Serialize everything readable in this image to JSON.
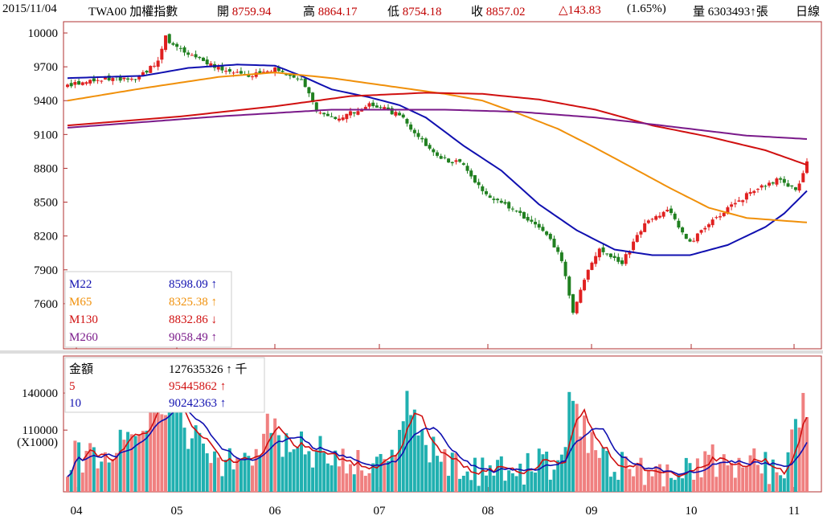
{
  "header": {
    "date": "2015/11/04",
    "symbol": "TWA00 加權指數",
    "open_label": "開",
    "open_value": "8759.94",
    "high_label": "高",
    "high_value": "8864.17",
    "low_label": "低",
    "low_value": "8754.18",
    "close_label": "收",
    "close_value": "8857.02",
    "change": "△143.83",
    "change_pct": "(1.65%)",
    "volume_label": "量",
    "volume_value": "6303493↑張",
    "period": "日線"
  },
  "colors": {
    "frame": "#b03030",
    "up": "#e02020",
    "down": "#208020",
    "m22": "#1010b0",
    "m65": "#f0900a",
    "m130": "#d01010",
    "m260": "#7a1a8a",
    "vol_up": "#f08080",
    "vol_down": "#20b0b0",
    "vol5": "#d01010",
    "vol10": "#1010b0"
  },
  "chart_data": [
    {
      "type": "candlestick",
      "ylim": [
        7200,
        10100
      ],
      "y_ticks": [
        "10000",
        "9700",
        "9400",
        "9100",
        "8800",
        "8500",
        "8200",
        "7900",
        "7600"
      ],
      "x_ticks": [
        "04",
        "05",
        "06",
        "07",
        "08",
        "09",
        "10",
        "11"
      ],
      "legend": [
        {
          "name": "M22",
          "value": "8598.09",
          "arrow": "↑"
        },
        {
          "name": "M65",
          "value": "8325.38",
          "arrow": "↑"
        },
        {
          "name": "M130",
          "value": "8832.86",
          "arrow": "↓"
        },
        {
          "name": "M260",
          "value": "9058.49",
          "arrow": "↑"
        }
      ],
      "close_anchors": [
        [
          0,
          9540
        ],
        [
          10,
          9600
        ],
        [
          18,
          9590
        ],
        [
          24,
          9740
        ],
        [
          26,
          9960
        ],
        [
          29,
          9870
        ],
        [
          33,
          9790
        ],
        [
          40,
          9690
        ],
        [
          48,
          9620
        ],
        [
          55,
          9680
        ],
        [
          62,
          9600
        ],
        [
          66,
          9320
        ],
        [
          72,
          9230
        ],
        [
          80,
          9380
        ],
        [
          88,
          9270
        ],
        [
          95,
          9000
        ],
        [
          100,
          8880
        ],
        [
          105,
          8840
        ],
        [
          110,
          8580
        ],
        [
          116,
          8480
        ],
        [
          122,
          8350
        ],
        [
          127,
          8220
        ],
        [
          131,
          7980
        ],
        [
          134,
          7520
        ],
        [
          137,
          7830
        ],
        [
          141,
          8080
        ],
        [
          147,
          7970
        ],
        [
          153,
          8300
        ],
        [
          159,
          8440
        ],
        [
          165,
          8140
        ],
        [
          171,
          8340
        ],
        [
          177,
          8490
        ],
        [
          183,
          8630
        ],
        [
          189,
          8710
        ],
        [
          193,
          8590
        ],
        [
          196,
          8860
        ]
      ],
      "ma": [
        {
          "name": "M22",
          "points": [
            [
              0,
              9600
            ],
            [
              20,
              9620
            ],
            [
              32,
              9690
            ],
            [
              45,
              9720
            ],
            [
              55,
              9710
            ],
            [
              62,
              9620
            ],
            [
              70,
              9500
            ],
            [
              80,
              9430
            ],
            [
              88,
              9360
            ],
            [
              95,
              9250
            ],
            [
              105,
              9000
            ],
            [
              115,
              8780
            ],
            [
              125,
              8480
            ],
            [
              135,
              8250
            ],
            [
              145,
              8080
            ],
            [
              155,
              8030
            ],
            [
              165,
              8030
            ],
            [
              175,
              8120
            ],
            [
              185,
              8280
            ],
            [
              190,
              8400
            ],
            [
              196,
              8600
            ]
          ]
        },
        {
          "name": "M65",
          "points": [
            [
              0,
              9400
            ],
            [
              20,
              9510
            ],
            [
              40,
              9610
            ],
            [
              55,
              9650
            ],
            [
              70,
              9600
            ],
            [
              85,
              9530
            ],
            [
              100,
              9460
            ],
            [
              110,
              9400
            ],
            [
              120,
              9280
            ],
            [
              130,
              9150
            ],
            [
              140,
              8980
            ],
            [
              150,
              8800
            ],
            [
              160,
              8620
            ],
            [
              170,
              8450
            ],
            [
              180,
              8360
            ],
            [
              196,
              8320
            ]
          ]
        },
        {
          "name": "M130",
          "points": [
            [
              0,
              9180
            ],
            [
              30,
              9260
            ],
            [
              55,
              9350
            ],
            [
              75,
              9440
            ],
            [
              95,
              9470
            ],
            [
              110,
              9460
            ],
            [
              125,
              9410
            ],
            [
              140,
              9320
            ],
            [
              155,
              9180
            ],
            [
              170,
              9080
            ],
            [
              185,
              8960
            ],
            [
              196,
              8830
            ]
          ]
        },
        {
          "name": "M260",
          "points": [
            [
              0,
              9160
            ],
            [
              40,
              9260
            ],
            [
              70,
              9320
            ],
            [
              100,
              9320
            ],
            [
              120,
              9300
            ],
            [
              140,
              9250
            ],
            [
              160,
              9170
            ],
            [
              180,
              9090
            ],
            [
              196,
              9060
            ]
          ]
        }
      ]
    },
    {
      "type": "bar",
      "title": "金額",
      "unit_label": "(X1000)",
      "ylim": [
        60000,
        170000
      ],
      "y_ticks": [
        "140000",
        "110000"
      ],
      "legend": [
        {
          "name": "金額",
          "value": "127635326",
          "arrow": "↑",
          "unit": "千"
        },
        {
          "name": "5",
          "value": "95445862",
          "arrow": "↑"
        },
        {
          "name": "10",
          "value": "90242363",
          "arrow": "↑"
        }
      ],
      "volume_anchors": [
        [
          0,
          85000
        ],
        [
          20,
          100000
        ],
        [
          24,
          135000
        ],
        [
          26,
          130000
        ],
        [
          30,
          115000
        ],
        [
          40,
          85000
        ],
        [
          50,
          90000
        ],
        [
          53,
          120000
        ],
        [
          56,
          100000
        ],
        [
          62,
          95000
        ],
        [
          70,
          88000
        ],
        [
          80,
          82000
        ],
        [
          86,
          82000
        ],
        [
          90,
          138000
        ],
        [
          93,
          105000
        ],
        [
          100,
          80000
        ],
        [
          110,
          78000
        ],
        [
          120,
          80000
        ],
        [
          130,
          80000
        ],
        [
          134,
          142000
        ],
        [
          136,
          112000
        ],
        [
          140,
          95000
        ],
        [
          150,
          75000
        ],
        [
          160,
          80000
        ],
        [
          170,
          85000
        ],
        [
          180,
          82000
        ],
        [
          190,
          80000
        ],
        [
          195,
          128000
        ]
      ]
    }
  ]
}
